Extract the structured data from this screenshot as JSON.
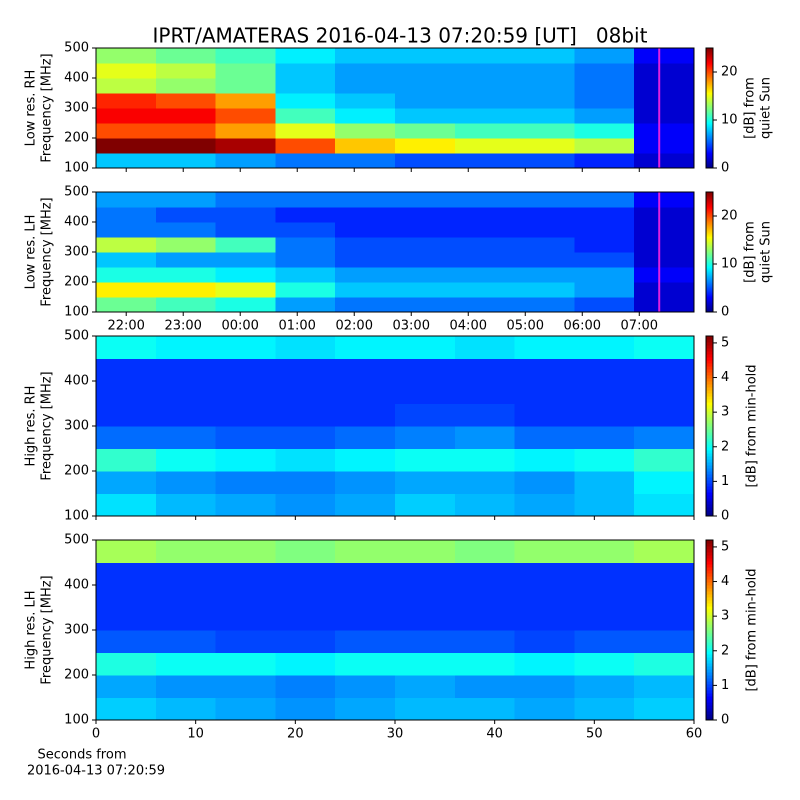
{
  "chart_data": [
    {
      "type": "heatmap",
      "title": "IPRT/AMATERAS 2016-04-13 07:20:59 [UT]   08bit",
      "ylabel": [
        "Low res. RH",
        "Frequency [MHz]"
      ],
      "colorbar_label": [
        "[dB] from",
        "quiet Sun"
      ],
      "colormap": "jet",
      "xlim": [
        21.47,
        31.96
      ],
      "xticks": [
        22,
        23,
        24,
        25,
        26,
        27,
        28,
        29,
        30,
        31
      ],
      "tick_labels": false,
      "ylim": [
        100,
        500
      ],
      "yticks": [
        100,
        200,
        300,
        400,
        500
      ],
      "clim": [
        0,
        25
      ],
      "cticks": [
        0,
        10,
        20
      ],
      "cursor_x": 31.35,
      "cursor_color": "#e020e0",
      "z": [
        [
          8,
          8,
          7,
          6,
          6,
          5,
          5,
          5,
          4,
          2
        ],
        [
          25,
          25,
          24,
          20,
          17,
          16,
          15,
          15,
          14,
          3
        ],
        [
          20,
          20,
          18,
          15,
          13,
          12,
          11,
          11,
          10,
          3
        ],
        [
          22,
          22,
          20,
          11,
          9,
          8,
          8,
          8,
          7,
          2
        ],
        [
          21,
          20,
          18,
          9,
          8,
          7,
          7,
          7,
          6,
          2
        ],
        [
          14,
          13,
          12,
          8,
          7,
          7,
          7,
          7,
          6,
          2
        ],
        [
          15,
          14,
          12,
          8,
          7,
          7,
          7,
          7,
          6,
          2
        ],
        [
          13,
          12,
          11,
          9,
          8,
          8,
          8,
          8,
          7,
          3
        ]
      ]
    },
    {
      "type": "heatmap",
      "ylabel": [
        "Low res. LH",
        "Frequency [MHz]"
      ],
      "colorbar_label": [
        "[dB] from",
        "quiet Sun"
      ],
      "colormap": "jet",
      "xlim": [
        21.47,
        31.96
      ],
      "xticks": [
        {
          "value": 22,
          "label": "22:00"
        },
        {
          "value": 23,
          "label": "23:00"
        },
        {
          "value": 24,
          "label": "00:00"
        },
        {
          "value": 25,
          "label": "01:00"
        },
        {
          "value": 26,
          "label": "02:00"
        },
        {
          "value": 27,
          "label": "03:00"
        },
        {
          "value": 28,
          "label": "04:00"
        },
        {
          "value": 29,
          "label": "05:00"
        },
        {
          "value": 30,
          "label": "06:00"
        },
        {
          "value": 31,
          "label": "07:00"
        }
      ],
      "ylim": [
        100,
        500
      ],
      "yticks": [
        100,
        200,
        300,
        400,
        500
      ],
      "clim": [
        0,
        25
      ],
      "cticks": [
        0,
        10,
        20
      ],
      "cursor_x": 31.35,
      "cursor_color": "#e020e0",
      "z": [
        [
          12,
          11,
          10,
          7,
          6,
          6,
          6,
          6,
          5,
          2
        ],
        [
          16,
          16,
          15,
          10,
          8,
          8,
          8,
          8,
          7,
          2
        ],
        [
          10,
          10,
          9,
          8,
          7,
          7,
          7,
          7,
          7,
          3
        ],
        [
          8,
          7,
          7,
          6,
          5,
          5,
          5,
          5,
          5,
          2
        ],
        [
          14,
          13,
          11,
          6,
          5,
          5,
          5,
          5,
          4,
          2
        ],
        [
          6,
          6,
          5,
          5,
          4,
          4,
          4,
          4,
          4,
          2
        ],
        [
          6,
          5,
          5,
          4,
          4,
          4,
          4,
          4,
          4,
          2
        ],
        [
          7,
          7,
          6,
          6,
          6,
          6,
          6,
          6,
          6,
          3
        ]
      ]
    },
    {
      "type": "heatmap",
      "ylabel": [
        "High res. RH",
        "Frequency [MHz]"
      ],
      "colorbar_label": [
        "[dB] from min-hold"
      ],
      "colormap": "jet",
      "xlim": [
        0,
        60
      ],
      "xticks": [
        0,
        10,
        20,
        30,
        40,
        50,
        60
      ],
      "tick_labels": false,
      "ylim": [
        100,
        500
      ],
      "yticks": [
        100,
        200,
        300,
        400,
        500
      ],
      "clim": [
        0,
        5.2
      ],
      "cticks": [
        0,
        1,
        2,
        3,
        4,
        5
      ],
      "z": [
        [
          1.8,
          1.6,
          1.5,
          1.4,
          1.5,
          1.7,
          1.6,
          1.5,
          1.6,
          1.8
        ],
        [
          1.5,
          1.4,
          1.3,
          1.3,
          1.4,
          1.5,
          1.5,
          1.4,
          1.6,
          1.9
        ],
        [
          2.2,
          2.0,
          1.9,
          1.8,
          1.9,
          2.0,
          2.0,
          1.9,
          2.0,
          2.2
        ],
        [
          1.2,
          1.2,
          1.1,
          1.1,
          1.2,
          1.3,
          1.4,
          1.2,
          1.2,
          1.3
        ],
        [
          0.9,
          0.9,
          0.9,
          0.9,
          0.9,
          1.0,
          1.0,
          0.9,
          0.9,
          0.9
        ],
        [
          0.9,
          0.9,
          0.9,
          0.9,
          0.9,
          0.9,
          0.9,
          0.9,
          0.9,
          0.9
        ],
        [
          0.9,
          0.9,
          0.9,
          0.9,
          0.9,
          0.9,
          0.9,
          0.9,
          0.9,
          0.9
        ],
        [
          2.0,
          1.9,
          1.9,
          1.8,
          1.9,
          1.9,
          1.8,
          1.9,
          1.9,
          2.0
        ]
      ]
    },
    {
      "type": "heatmap",
      "ylabel": [
        "High res. LH",
        "Frequency [MHz]"
      ],
      "colorbar_label": [
        "[dB] from min-hold"
      ],
      "colormap": "jet",
      "xlabel": [
        "Seconds from",
        "2016-04-13 07:20:59"
      ],
      "xlim": [
        0,
        60
      ],
      "xticks": [
        0,
        10,
        20,
        30,
        40,
        50,
        60
      ],
      "ylim": [
        100,
        500
      ],
      "yticks": [
        100,
        200,
        300,
        400,
        500
      ],
      "clim": [
        0,
        5.2
      ],
      "cticks": [
        0,
        1,
        2,
        3,
        4,
        5
      ],
      "z": [
        [
          1.7,
          1.6,
          1.5,
          1.4,
          1.5,
          1.6,
          1.6,
          1.5,
          1.6,
          1.7
        ],
        [
          1.5,
          1.4,
          1.4,
          1.3,
          1.4,
          1.5,
          1.4,
          1.4,
          1.5,
          1.6
        ],
        [
          2.1,
          2.0,
          2.0,
          1.9,
          2.0,
          2.0,
          2.0,
          1.9,
          2.0,
          2.1
        ],
        [
          1.1,
          1.1,
          1.0,
          1.0,
          1.1,
          1.1,
          1.1,
          1.0,
          1.1,
          1.1
        ],
        [
          0.9,
          0.9,
          0.9,
          0.9,
          0.9,
          0.9,
          0.9,
          0.9,
          0.9,
          0.9
        ],
        [
          0.9,
          0.9,
          0.9,
          0.9,
          0.9,
          0.9,
          0.9,
          0.9,
          0.9,
          0.9
        ],
        [
          0.9,
          0.9,
          0.9,
          0.9,
          0.9,
          0.9,
          0.9,
          0.9,
          0.9,
          0.9
        ],
        [
          2.8,
          2.7,
          2.7,
          2.6,
          2.7,
          2.7,
          2.6,
          2.7,
          2.7,
          2.8
        ]
      ]
    }
  ]
}
